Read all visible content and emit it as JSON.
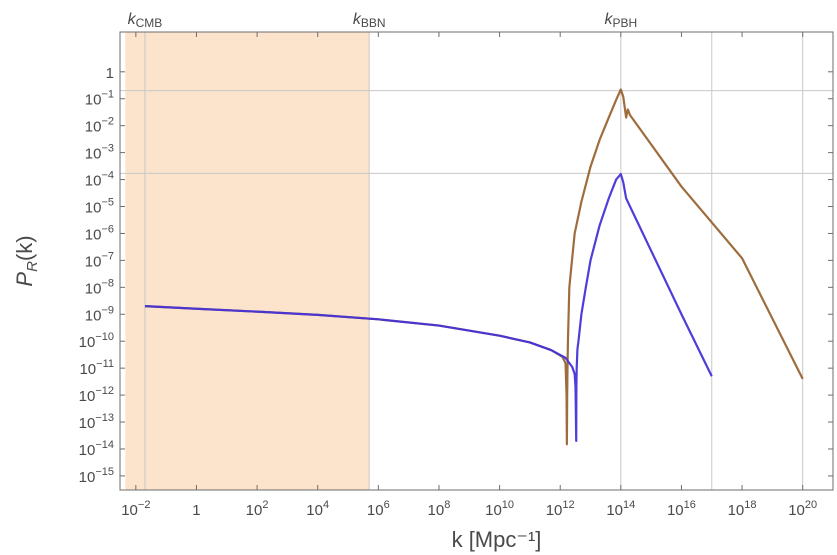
{
  "chart_data": {
    "type": "line",
    "title": "",
    "xlabel": "k [Mpc⁻¹]",
    "ylabel": "P_R(k)",
    "x_log": true,
    "y_log": true,
    "xlim": [
      0.003,
      1e+21
    ],
    "ylim": [
      3e-16,
      30
    ],
    "x_ticks": [
      {
        "value": 0.01,
        "base": "10",
        "exp": "−2"
      },
      {
        "value": 1,
        "base": "1",
        "exp": ""
      },
      {
        "value": 100,
        "base": "10",
        "exp": "2"
      },
      {
        "value": 10000,
        "base": "10",
        "exp": "4"
      },
      {
        "value": 1000000.0,
        "base": "10",
        "exp": "6"
      },
      {
        "value": 100000000.0,
        "base": "10",
        "exp": "8"
      },
      {
        "value": 10000000000.0,
        "base": "10",
        "exp": "10"
      },
      {
        "value": 1000000000000.0,
        "base": "10",
        "exp": "12"
      },
      {
        "value": 100000000000000.0,
        "base": "10",
        "exp": "14"
      },
      {
        "value": 1e+16,
        "base": "10",
        "exp": "16"
      },
      {
        "value": 1e+18,
        "base": "10",
        "exp": "18"
      },
      {
        "value": 1e+20,
        "base": "10",
        "exp": "20"
      }
    ],
    "y_ticks": [
      {
        "value": 1,
        "base": "1",
        "exp": ""
      },
      {
        "value": 0.1,
        "base": "10",
        "exp": "−1"
      },
      {
        "value": 0.01,
        "base": "10",
        "exp": "−2"
      },
      {
        "value": 0.001,
        "base": "10",
        "exp": "−3"
      },
      {
        "value": 0.0001,
        "base": "10",
        "exp": "−4"
      },
      {
        "value": 1e-05,
        "base": "10",
        "exp": "−5"
      },
      {
        "value": 1e-06,
        "base": "10",
        "exp": "−6"
      },
      {
        "value": 1e-07,
        "base": "10",
        "exp": "−7"
      },
      {
        "value": 1e-08,
        "base": "10",
        "exp": "−8"
      },
      {
        "value": 1e-09,
        "base": "10",
        "exp": "−9"
      },
      {
        "value": 1e-10,
        "base": "10",
        "exp": "−10"
      },
      {
        "value": 1e-11,
        "base": "10",
        "exp": "−11"
      },
      {
        "value": 1e-12,
        "base": "10",
        "exp": "−12"
      },
      {
        "value": 1e-13,
        "base": "10",
        "exp": "−13"
      },
      {
        "value": 1e-14,
        "base": "10",
        "exp": "−14"
      },
      {
        "value": 1e-15,
        "base": "10",
        "exp": "−15"
      }
    ],
    "shaded_region": {
      "x": [
        0.0045,
        500000.0
      ],
      "color": "#fbe3cc"
    },
    "reference_lines_x": [
      {
        "value": 0.02,
        "label": "k",
        "sub": "CMB"
      },
      {
        "value": 500000.0,
        "label": "k",
        "sub": "BBN"
      },
      {
        "value": 100000000000000.0,
        "label": "k",
        "sub": "PBH"
      },
      {
        "value": 1e+17,
        "label": "",
        "sub": ""
      },
      {
        "value": 1e+20,
        "label": "",
        "sub": ""
      }
    ],
    "reference_lines_y": [
      0.2,
      0.00017
    ],
    "series": [
      {
        "color": "#9a6434",
        "x": [
          0.02,
          1,
          100,
          10000,
          1000000.0,
          100000000.0,
          10000000000.0,
          100000000000.0,
          500000000000.0,
          1200000000000.0,
          1500000000000.0,
          1620000000000.0,
          1660000000000.0,
          1700000000000.0,
          1740000000000.0,
          1800000000000.0,
          2000000000000.0,
          3000000000000.0,
          5000000000000.0,
          10000000000000.0,
          20000000000000.0,
          40000000000000.0,
          70000000000000.0,
          100000000000000.0,
          120000000000000.0,
          150000000000000.0,
          170000000000000.0,
          200000000000000.0,
          1e+16,
          1e+18,
          1e+20
        ],
        "y": [
          2e-09,
          1.6e-09,
          1.25e-09,
          9.5e-10,
          6.5e-10,
          3.8e-10,
          1.6e-10,
          9e-11,
          4.7e-11,
          2.6e-11,
          1.5e-11,
          1e-12,
          1.5e-14,
          1e-12,
          1e-11,
          1e-10,
          1e-08,
          1e-06,
          1.5e-05,
          0.0003,
          0.003,
          0.02,
          0.09,
          0.22,
          0.12,
          0.02,
          0.04,
          0.025,
          5.5e-05,
          1.2e-07,
          4e-12
        ]
      },
      {
        "color": "#4633d8",
        "x": [
          0.02,
          1,
          100,
          10000,
          1000000.0,
          100000000.0,
          10000000000.0,
          100000000000.0,
          500000000000.0,
          1500000000000.0,
          2500000000000.0,
          3000000000000.0,
          3200000000000.0,
          3380000000000.0,
          3420000000000.0,
          3500000000000.0,
          3700000000000.0,
          4000000000000.0,
          5000000000000.0,
          7000000000000.0,
          10000000000000.0,
          20000000000000.0,
          40000000000000.0,
          70000000000000.0,
          100000000000000.0,
          120000000000000.0,
          150000000000000.0,
          1e+16,
          1e+17
        ],
        "y": [
          2e-09,
          1.6e-09,
          1.25e-09,
          9.5e-10,
          6.5e-10,
          3.8e-10,
          1.6e-10,
          9e-11,
          4.7e-11,
          2.4e-11,
          1.1e-11,
          6e-12,
          2e-12,
          2e-14,
          2e-12,
          1e-11,
          5e-11,
          1e-10,
          1e-09,
          1e-08,
          1e-07,
          2e-06,
          2e-05,
          0.0001,
          0.00016,
          8e-05,
          2e-05,
          1e-09,
          5e-12
        ]
      }
    ]
  }
}
